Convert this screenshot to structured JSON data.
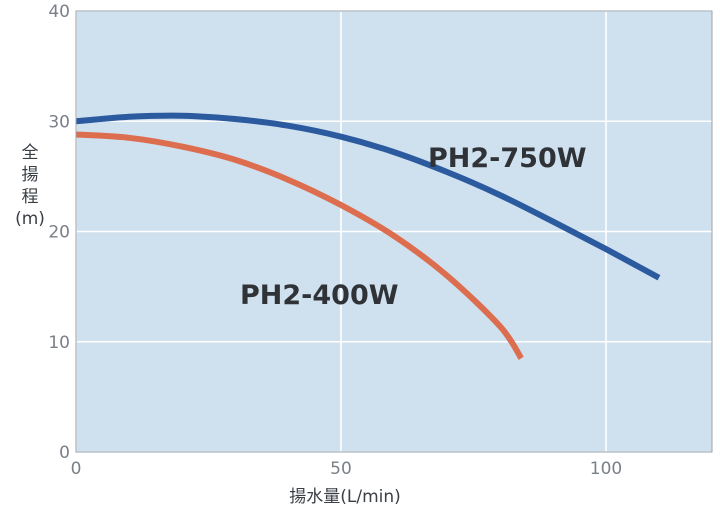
{
  "chart_data": {
    "type": "line",
    "title": "",
    "xlabel": "揚水量(L/min)",
    "ylabel": [
      "全",
      "揚",
      "程",
      "(m)"
    ],
    "xlim": [
      0,
      120
    ],
    "ylim": [
      0,
      40
    ],
    "x_ticks": [
      0,
      50,
      100
    ],
    "y_ticks": [
      0,
      10,
      20,
      30,
      40
    ],
    "grid": true,
    "background_color": "#cfe0ee",
    "series": [
      {
        "name": "PH2-750W",
        "color": "#2b5a9e",
        "points": [
          [
            0,
            30.0
          ],
          [
            10,
            30.4
          ],
          [
            20,
            30.5
          ],
          [
            30,
            30.2
          ],
          [
            40,
            29.6
          ],
          [
            50,
            28.6
          ],
          [
            60,
            27.2
          ],
          [
            70,
            25.4
          ],
          [
            80,
            23.3
          ],
          [
            90,
            20.9
          ],
          [
            100,
            18.4
          ],
          [
            110,
            15.8
          ]
        ]
      },
      {
        "name": "PH2-400W",
        "color": "#dc6e4f",
        "points": [
          [
            0,
            28.8
          ],
          [
            10,
            28.5
          ],
          [
            20,
            27.7
          ],
          [
            30,
            26.5
          ],
          [
            40,
            24.7
          ],
          [
            50,
            22.4
          ],
          [
            60,
            19.6
          ],
          [
            70,
            16.0
          ],
          [
            80,
            11.4
          ],
          [
            84,
            8.5
          ]
        ]
      }
    ]
  }
}
